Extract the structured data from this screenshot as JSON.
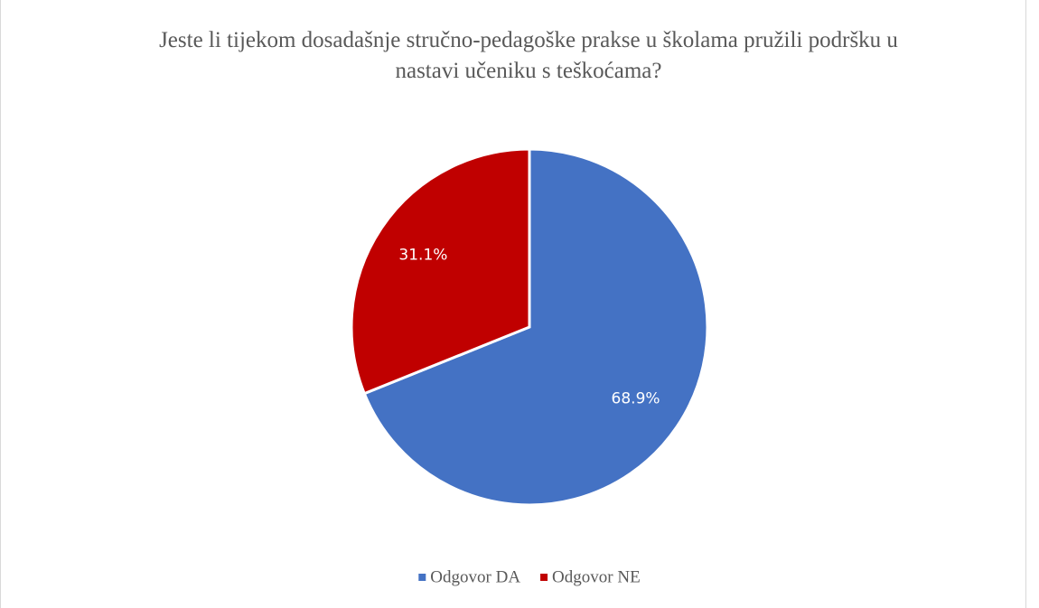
{
  "chart_data": {
    "type": "pie",
    "title": "Jeste li tijekom dosadašnje stručno-pedagoške prakse u školama pružili podršku u nastavi učeniku s teškoćama?",
    "categories": [
      "Odgovor DA",
      "Odgovor NE"
    ],
    "values": [
      68.9,
      31.1
    ],
    "value_labels": [
      "68.9%",
      "31.1%"
    ],
    "colors": [
      "#4472c4",
      "#c00000"
    ],
    "legend": "bottom"
  }
}
